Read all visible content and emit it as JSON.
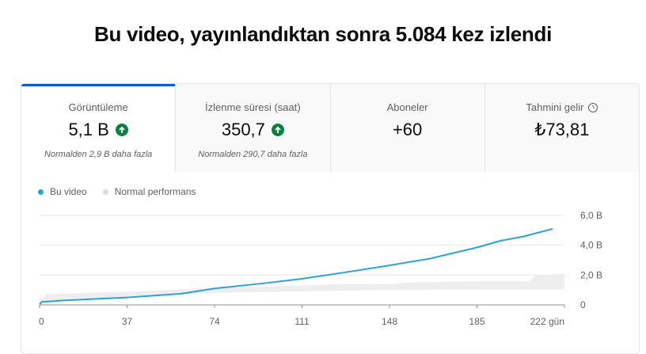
{
  "title": "Bu video, yayınlandıktan sonra 5.084 kez izlendi",
  "tabs": [
    {
      "label": "Görüntüleme",
      "value": "5,1 B",
      "sub": "Normalden 2,9 B daha fazla",
      "trend": "up"
    },
    {
      "label": "İzlenme süresi (saat)",
      "value": "350,7",
      "sub": "Normalden 290,7 daha fazla",
      "trend": "up"
    },
    {
      "label": "Aboneler",
      "value": "+60"
    },
    {
      "label": "Tahmini gelir",
      "value": "₺73,81",
      "icon": "clock-icon"
    }
  ],
  "colors": {
    "accent": "#065fd4",
    "line": "#2ea3cf",
    "band": "#eeeeee",
    "up": "#0b8043"
  },
  "chart_data": {
    "type": "line",
    "legend": [
      "Bu video",
      "Normal performans"
    ],
    "xticks": [
      0,
      37,
      74,
      111,
      148,
      185,
      222
    ],
    "xtick_labels": [
      "0",
      "37",
      "74",
      "111",
      "148",
      "185",
      "222 gün"
    ],
    "yticks": [
      0,
      2,
      4,
      6
    ],
    "ytick_labels": [
      "0",
      "2,0 B",
      "4,0 B",
      "6,0 B"
    ],
    "xlim": [
      0,
      222
    ],
    "ylim": [
      0,
      6
    ],
    "series": [
      {
        "name": "Bu video",
        "x": [
          0,
          1,
          10,
          37,
          60,
          74,
          95,
          111,
          130,
          148,
          165,
          185,
          195,
          205,
          217
        ],
        "y": [
          0.05,
          0.2,
          0.3,
          0.5,
          0.75,
          1.1,
          1.45,
          1.75,
          2.2,
          2.65,
          3.1,
          3.85,
          4.3,
          4.6,
          5.1
        ]
      }
    ],
    "band": {
      "name": "Normal performans",
      "x": [
        0,
        3,
        20,
        40,
        74,
        110,
        128,
        148,
        155,
        185,
        207,
        210,
        222
      ],
      "upper": [
        0.2,
        0.7,
        0.8,
        0.9,
        1.15,
        1.3,
        1.4,
        1.4,
        1.5,
        1.6,
        1.6,
        2.0,
        2.1
      ],
      "lower": [
        0,
        0.1,
        0.4,
        0.6,
        0.8,
        0.9,
        0.95,
        1.0,
        1.0,
        1.05,
        1.05,
        1.05,
        1.05
      ]
    }
  }
}
